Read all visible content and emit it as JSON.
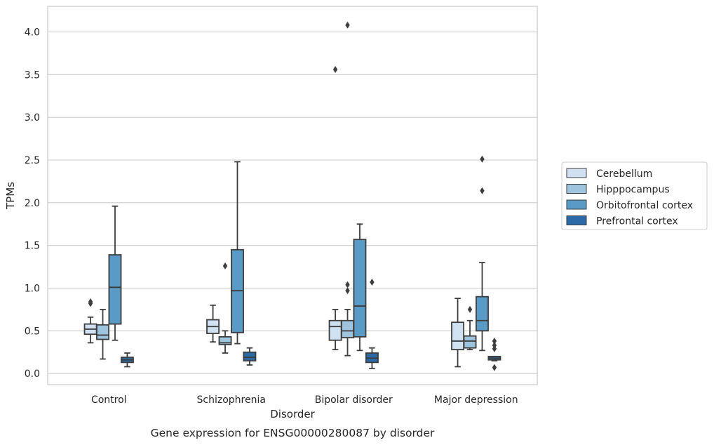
{
  "chart_data": {
    "type": "box",
    "caption": "Gene expression for ENSG00000280087 by disorder",
    "xlabel": "Disorder",
    "ylabel": "TPMs",
    "ylim": [
      -0.13,
      4.3
    ],
    "yticks": [
      "0.0",
      "0.5",
      "1.0",
      "1.5",
      "2.0",
      "2.5",
      "3.0",
      "3.5",
      "4.0"
    ],
    "grid": "horizontal",
    "legend_position": "right",
    "categories": [
      "Control",
      "Schizophrenia",
      "Bipolar disorder",
      "Major depression"
    ],
    "series": [
      {
        "name": "Cerebellum",
        "color": "#d0e1f2",
        "boxes": [
          {
            "whisker_low": 0.36,
            "q1": 0.46,
            "median": 0.52,
            "q3": 0.58,
            "whisker_high": 0.66,
            "outliers": [
              0.82,
              0.84
            ]
          },
          {
            "whisker_low": 0.37,
            "q1": 0.47,
            "median": 0.55,
            "q3": 0.63,
            "whisker_high": 0.8,
            "outliers": []
          },
          {
            "whisker_low": 0.28,
            "q1": 0.39,
            "median": 0.55,
            "q3": 0.62,
            "whisker_high": 0.75,
            "outliers": [
              3.56
            ]
          },
          {
            "whisker_low": 0.08,
            "q1": 0.28,
            "median": 0.38,
            "q3": 0.6,
            "whisker_high": 0.88,
            "outliers": []
          }
        ]
      },
      {
        "name": "Hipppocampus",
        "color": "#9fc5de",
        "boxes": [
          {
            "whisker_low": 0.17,
            "q1": 0.4,
            "median": 0.45,
            "q3": 0.57,
            "whisker_high": 0.75,
            "outliers": []
          },
          {
            "whisker_low": 0.24,
            "q1": 0.34,
            "median": 0.36,
            "q3": 0.43,
            "whisker_high": 0.5,
            "outliers": [
              1.26
            ]
          },
          {
            "whisker_low": 0.21,
            "q1": 0.42,
            "median": 0.5,
            "q3": 0.62,
            "whisker_high": 0.75,
            "outliers": [
              0.97,
              1.04,
              4.08
            ]
          },
          {
            "whisker_low": 0.28,
            "q1": 0.3,
            "median": 0.38,
            "q3": 0.44,
            "whisker_high": 0.62,
            "outliers": [
              0.75
            ]
          }
        ]
      },
      {
        "name": "Orbitofrontal cortex",
        "color": "#5a9ac6",
        "boxes": [
          {
            "whisker_low": 0.39,
            "q1": 0.58,
            "median": 1.01,
            "q3": 1.39,
            "whisker_high": 1.96,
            "outliers": []
          },
          {
            "whisker_low": 0.35,
            "q1": 0.48,
            "median": 0.97,
            "q3": 1.45,
            "whisker_high": 2.48,
            "outliers": []
          },
          {
            "whisker_low": 0.27,
            "q1": 0.43,
            "median": 0.79,
            "q3": 1.57,
            "whisker_high": 1.75,
            "outliers": []
          },
          {
            "whisker_low": 0.27,
            "q1": 0.5,
            "median": 0.62,
            "q3": 0.9,
            "whisker_high": 1.3,
            "outliers": [
              2.14,
              2.51
            ]
          }
        ]
      },
      {
        "name": "Prefrontal cortex",
        "color": "#2b6aa6",
        "boxes": [
          {
            "whisker_low": 0.08,
            "q1": 0.13,
            "median": 0.16,
            "q3": 0.19,
            "whisker_high": 0.24,
            "outliers": []
          },
          {
            "whisker_low": 0.1,
            "q1": 0.15,
            "median": 0.19,
            "q3": 0.25,
            "whisker_high": 0.3,
            "outliers": []
          },
          {
            "whisker_low": 0.06,
            "q1": 0.13,
            "median": 0.18,
            "q3": 0.24,
            "whisker_high": 0.3,
            "outliers": [
              1.07
            ]
          },
          {
            "whisker_low": 0.15,
            "q1": 0.16,
            "median": 0.18,
            "q3": 0.2,
            "whisker_high": 0.2,
            "outliers": [
              0.07,
              0.29,
              0.33,
              0.38
            ]
          }
        ]
      }
    ]
  }
}
